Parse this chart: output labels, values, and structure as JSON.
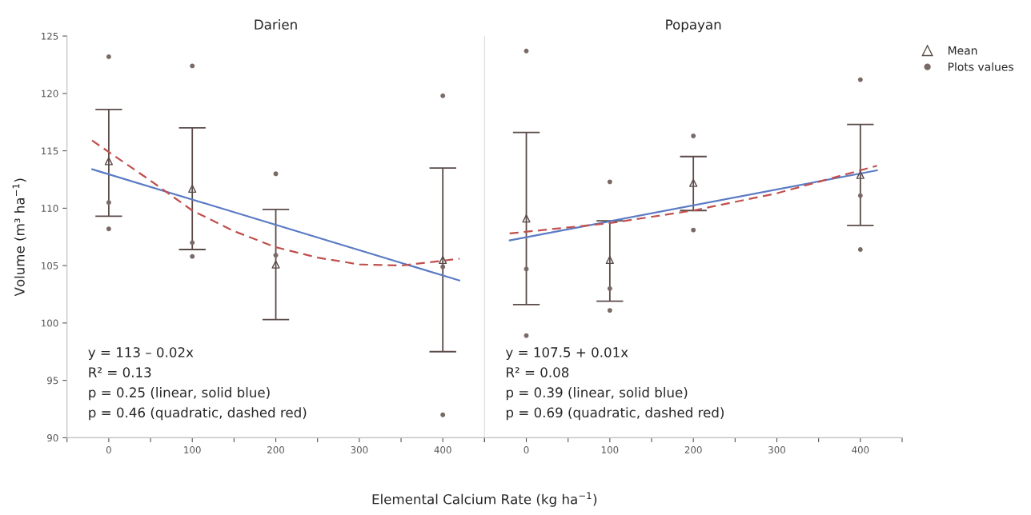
{
  "chart_data": [
    {
      "type": "scatter",
      "title": "Darien",
      "xlabel": "Elemental Calcium Rate (kg ha$^{−1}$)",
      "ylabel": "Volume (m³ ha$^{−1}$)",
      "xlim": [
        -50,
        450
      ],
      "xticks": [
        {
          "value": -50,
          "label": null
        },
        0,
        {
          "value": 50,
          "label": null
        },
        100,
        {
          "value": 150,
          "label": null
        },
        200,
        {
          "value": 250,
          "label": null
        },
        300,
        {
          "value": 350,
          "label": null
        },
        400,
        {
          "value": 450,
          "label": null
        }
      ],
      "ylim": [
        90,
        125
      ],
      "yticks": [
        90,
        95,
        100,
        105,
        110,
        115,
        120,
        125
      ],
      "grid": false,
      "series": [
        {
          "marker": "triangle",
          "color": "#5a4a48",
          "x": [
            0,
            100,
            200,
            400
          ],
          "values": [
            114.1,
            111.7,
            105.1,
            105.5
          ],
          "errors": [
            [
              109.3,
              118.6
            ],
            [
              106.4,
              117.0
            ],
            [
              100.3,
              109.9
            ],
            [
              97.5,
              113.5
            ]
          ]
        },
        {
          "marker": "circle",
          "color": "#7a6a66",
          "x": [
            0,
            0,
            0,
            100,
            100,
            100,
            200,
            200,
            400,
            400,
            400
          ],
          "values": [
            123.2,
            110.5,
            108.2,
            122.4,
            107.0,
            105.8,
            113.0,
            105.9,
            119.8,
            104.9,
            92.0
          ]
        },
        {
          "type": "line",
          "line_style": "solid",
          "color": "#5b7bc4",
          "x": [
            -20,
            420
          ],
          "values": [
            113.4,
            103.7
          ]
        },
        {
          "type": "line",
          "line_style": "dashed",
          "color": "#c0504d",
          "x": [
            -20,
            50,
            100,
            150,
            200,
            250,
            300,
            350,
            420
          ],
          "values": [
            115.9,
            112.4,
            109.8,
            108.0,
            106.6,
            105.7,
            105.1,
            105.0,
            105.6
          ]
        }
      ],
      "annotations": [
        "y = 113 – 0.02x",
        "R² = 0.13",
        "p = 0.25 (linear, solid blue)",
        "p = 0.46 (quadratic, dashed red)"
      ]
    },
    {
      "type": "scatter",
      "title": "Popayan",
      "tick_labels": "x",
      "xlim": [
        -50,
        450
      ],
      "xticks": [
        {
          "value": -50,
          "label": null
        },
        0,
        {
          "value": 50,
          "label": null
        },
        100,
        {
          "value": 150,
          "label": null
        },
        200,
        {
          "value": 250,
          "label": null
        },
        300,
        {
          "value": 350,
          "label": null
        },
        400,
        {
          "value": 450,
          "label": null
        }
      ],
      "ylim": [
        90,
        125
      ],
      "grid": false,
      "legend": "top right",
      "series": [
        {
          "name": "Mean",
          "marker": "triangle",
          "color": "#5a4a48",
          "x": [
            0,
            100,
            200,
            400
          ],
          "values": [
            109.1,
            105.5,
            112.2,
            112.9
          ],
          "errors": [
            [
              101.6,
              116.6
            ],
            [
              101.9,
              108.9
            ],
            [
              109.8,
              114.5
            ],
            [
              108.5,
              117.3
            ]
          ]
        },
        {
          "name": "Plots values",
          "marker": "circle",
          "color": "#7a6a66",
          "x": [
            0,
            0,
            0,
            100,
            100,
            100,
            200,
            200,
            400,
            400,
            400
          ],
          "values": [
            123.7,
            104.7,
            98.9,
            112.3,
            103.0,
            101.1,
            116.3,
            108.1,
            121.2,
            111.1,
            106.4
          ]
        },
        {
          "type": "line",
          "line_style": "solid",
          "color": "#5b7bc4",
          "x": [
            -20,
            420
          ],
          "values": [
            107.2,
            113.3
          ]
        },
        {
          "type": "line",
          "line_style": "dashed",
          "color": "#c0504d",
          "x": [
            -20,
            100,
            200,
            300,
            420
          ],
          "values": [
            107.8,
            108.7,
            109.8,
            111.3,
            113.7
          ]
        }
      ],
      "annotations": [
        "y = 107.5 + 0.01x",
        "R² = 0.08",
        "p = 0.39 (linear, solid blue)",
        "p = 0.69 (quadratic, dashed red)"
      ]
    }
  ]
}
